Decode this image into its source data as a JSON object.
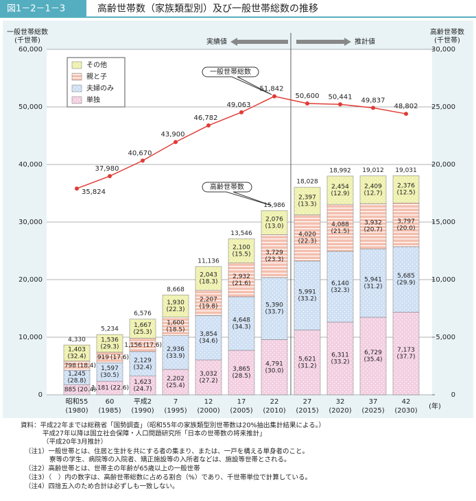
{
  "header": {
    "figure_number": "図1－2－1－3",
    "title": "高齢世帯数（家族類型別）及び一般世帯総数の推移"
  },
  "chart_data": {
    "type": "bar",
    "stacked": true,
    "y_label": [
      "一般世帯総数",
      "(千世帯)"
    ],
    "y2_label": [
      "高齢世帯数",
      "(千世帯)"
    ],
    "x_unit": "(年)",
    "period_labels": [
      "実績値",
      "推計値"
    ],
    "annotations": [
      "高齢世帯数"
    ],
    "categories": [
      "昭和55",
      "60",
      "平成2",
      "7",
      "12",
      "17",
      "22",
      "27",
      "32",
      "37",
      "42"
    ],
    "category_years": [
      "(1980)",
      "(1985)",
      "(1990)",
      "(1995)",
      "(2000)",
      "(2005)",
      "(2010)",
      "(2015)",
      "(2020)",
      "(2025)",
      "(2030)"
    ],
    "ylim": [
      0,
      60000
    ],
    "yticks": [
      0,
      {
        "value": 10000,
        "label": "10,000"
      },
      {
        "value": 20000,
        "label": "20,000"
      },
      {
        "value": 30000,
        "label": "30,000"
      },
      {
        "value": 40000,
        "label": "40,000"
      },
      {
        "value": 50000,
        "label": "50,000"
      },
      {
        "value": 60000,
        "label": "60,000"
      }
    ],
    "y2lim": [
      0,
      30000
    ],
    "y2ticks": [
      0,
      {
        "value": 5000,
        "label": "5,000"
      },
      {
        "value": 10000,
        "label": "10,000"
      },
      {
        "value": 15000,
        "label": "15,000"
      },
      {
        "value": 20000,
        "label": "20,000"
      },
      {
        "value": 25000,
        "label": "25,000"
      },
      {
        "value": 30000,
        "label": "30,000"
      }
    ],
    "grid": true,
    "series": [
      {
        "name": "単独",
        "color": "#f3cfe1",
        "pattern": "dots",
        "axis": "y2",
        "values": [
          885,
          1181,
          1623,
          2202,
          3032,
          3865,
          4791,
          5621,
          6311,
          6729,
          7173
        ],
        "value_labels": [
          "885",
          "1,181",
          "1,623",
          "2,202",
          "3,032",
          "3,865",
          "4,791",
          "5,621",
          "6,311",
          "6,729",
          "7,173"
        ],
        "share_labels": [
          "(20.4)",
          "(22.6)",
          "(24.7)",
          "(25.4)",
          "(27.2)",
          "(28.5)",
          "(30.0)",
          "(31.2)",
          "(33.2)",
          "(35.4)",
          "(37.7)"
        ]
      },
      {
        "name": "夫婦のみ",
        "color": "#cfe0f4",
        "pattern": "dots",
        "axis": "y2",
        "values": [
          1245,
          1597,
          2129,
          2936,
          3854,
          4648,
          5390,
          5991,
          6140,
          5941,
          5685
        ],
        "value_labels": [
          "1,245",
          "1,597",
          "2,129",
          "2,936",
          "3,854",
          "4,648",
          "5,390",
          "5,991",
          "6,140",
          "5,941",
          "5,685"
        ],
        "share_labels": [
          "(28.8)",
          "(30.5)",
          "(32.4)",
          "(33.9)",
          "(34.6)",
          "(34.3)",
          "(33.7)",
          "(33.2)",
          "(32.3)",
          "(31.2)",
          "(29.9)"
        ]
      },
      {
        "name": "親と子",
        "color": "#f4bfae",
        "pattern": "stripes",
        "axis": "y2",
        "values": [
          798,
          919,
          1156,
          1600,
          2207,
          2932,
          3729,
          4020,
          4088,
          3932,
          3797
        ],
        "value_labels": [
          "798",
          "919",
          "1,156",
          "1,600",
          "2,207",
          "2,932",
          "3,729",
          "4,020",
          "4,088",
          "3,932",
          "3,797"
        ],
        "share_labels": [
          "(18.4)",
          "(17.6)",
          "(17.6)",
          "(18.5)",
          "(19.8)",
          "(21.6)",
          "(23.3)",
          "(22.3)",
          "(21.5)",
          "(20.7)",
          "(20.0)"
        ]
      },
      {
        "name": "その他",
        "color": "#eef0ad",
        "pattern": "dots",
        "axis": "y2",
        "values": [
          1403,
          1536,
          1667,
          1930,
          2043,
          2100,
          2076,
          2397,
          2454,
          2409,
          2376
        ],
        "value_labels": [
          "1,403",
          "1,536",
          "1,667",
          "1,930",
          "2,043",
          "2,100",
          "2,076",
          "2,397",
          "2,454",
          "2,409",
          "2,376"
        ],
        "share_labels": [
          "(32.4)",
          "(29.3)",
          "(25.3)",
          "(22.3)",
          "(18.3)",
          "(15.5)",
          "(13.0)",
          "(13.3)",
          "(12.9)",
          "(12.7)",
          "(12.5)"
        ]
      },
      {
        "name": "一般世帯総数",
        "type": "line",
        "color": "#e03c36",
        "axis": "y",
        "values": [
          35824,
          37980,
          40670,
          43900,
          46782,
          49063,
          51842,
          50600,
          50441,
          49837,
          48802
        ],
        "value_labels": [
          "35,824",
          "37,980",
          "40,670",
          "43,900",
          "46,782",
          "49,063",
          "51,842",
          "50,600",
          "50,441",
          "49,837",
          "48,802"
        ]
      }
    ],
    "totals": [
      4330,
      5234,
      6576,
      8668,
      11136,
      13546,
      15986,
      18028,
      18992,
      19012,
      19031
    ],
    "total_labels": [
      "4,330",
      "5,234",
      "6,576",
      "8,668",
      "11,136",
      "13,546",
      "15,986",
      "18,028",
      "18,992",
      "19,012",
      "19,031"
    ]
  },
  "notes": [
    "資料：平成22年までは総務省「国勢調査」（昭和55年の家族類型別世帯数は20%抽出集計結果による。）",
    "平成27年以降は国立社会保障・人口問題研究所「日本の世帯数の将来推計」",
    "（平成20年3月推計）",
    "（注1）一般世帯とは、住居と生計を共にする者の集まり、または、一戸を構える単身者のこと。",
    "寮等の学生、病院等の入院者、矯正施設等の入所者などは、施設等世帯とされる。",
    "（注2）高齢世帯とは、世帯主の年齢が65歳以上の一般世帯",
    "（注3）（　）内の数字は、高齢世帯総数に占める割合（%）であり、千世帯単位で計算している。",
    "（注4）四捨五入のため合計は必ずしも一致しない。"
  ]
}
